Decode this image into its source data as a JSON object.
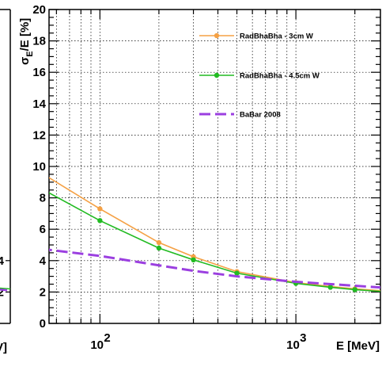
{
  "chart_data": {
    "type": "line",
    "xlabel": "E [MeV]",
    "ylabel_main": "σ",
    "ylabel_sub": "E",
    "ylabel_rest": "/E [%]",
    "xscale": "log",
    "xlim": [
      55,
      2700
    ],
    "ylim": [
      0,
      20
    ],
    "grid": true,
    "legend_position": "top-right",
    "x_tick_labels": [
      {
        "value": 100,
        "base": "10",
        "exp": "2"
      },
      {
        "value": 1000,
        "base": "10",
        "exp": "3"
      }
    ],
    "y_ticks": [
      0,
      2,
      4,
      6,
      8,
      10,
      12,
      14,
      16,
      18,
      20
    ],
    "y_tick_labels": [
      "0",
      "2",
      "4",
      "6",
      "8",
      "10",
      "12",
      "14",
      "16",
      "18",
      "20"
    ],
    "left_cut_y_ticks": [
      2,
      4
    ],
    "left_cut_y_tick_labels": [
      "2",
      "4"
    ],
    "left_cut_xlabel_fragment": "eV]",
    "series": [
      {
        "name": "RadBhaBha - 3cm W",
        "color": "#f5a145",
        "style": "solid-markers",
        "x": [
          50,
          100,
          200,
          300,
          500,
          1000,
          1500,
          2000,
          3000
        ],
        "y": [
          9.6,
          7.3,
          5.15,
          4.25,
          3.3,
          2.6,
          2.35,
          2.2,
          2.05
        ]
      },
      {
        "name": "RadBhaBha - 4.5cm W",
        "color": "#22bb22",
        "style": "solid-markers",
        "x": [
          50,
          100,
          200,
          300,
          500,
          1000,
          1500,
          2000,
          3000
        ],
        "y": [
          8.6,
          6.55,
          4.8,
          4.05,
          3.2,
          2.55,
          2.3,
          2.15,
          2.0
        ]
      },
      {
        "name": "BaBar 2008",
        "color": "#9b3fe0",
        "style": "dashed",
        "x": [
          50,
          100,
          200,
          300,
          500,
          1000,
          2000,
          3000
        ],
        "y": [
          4.75,
          4.3,
          3.7,
          3.35,
          3.0,
          2.65,
          2.4,
          2.25
        ]
      }
    ]
  }
}
